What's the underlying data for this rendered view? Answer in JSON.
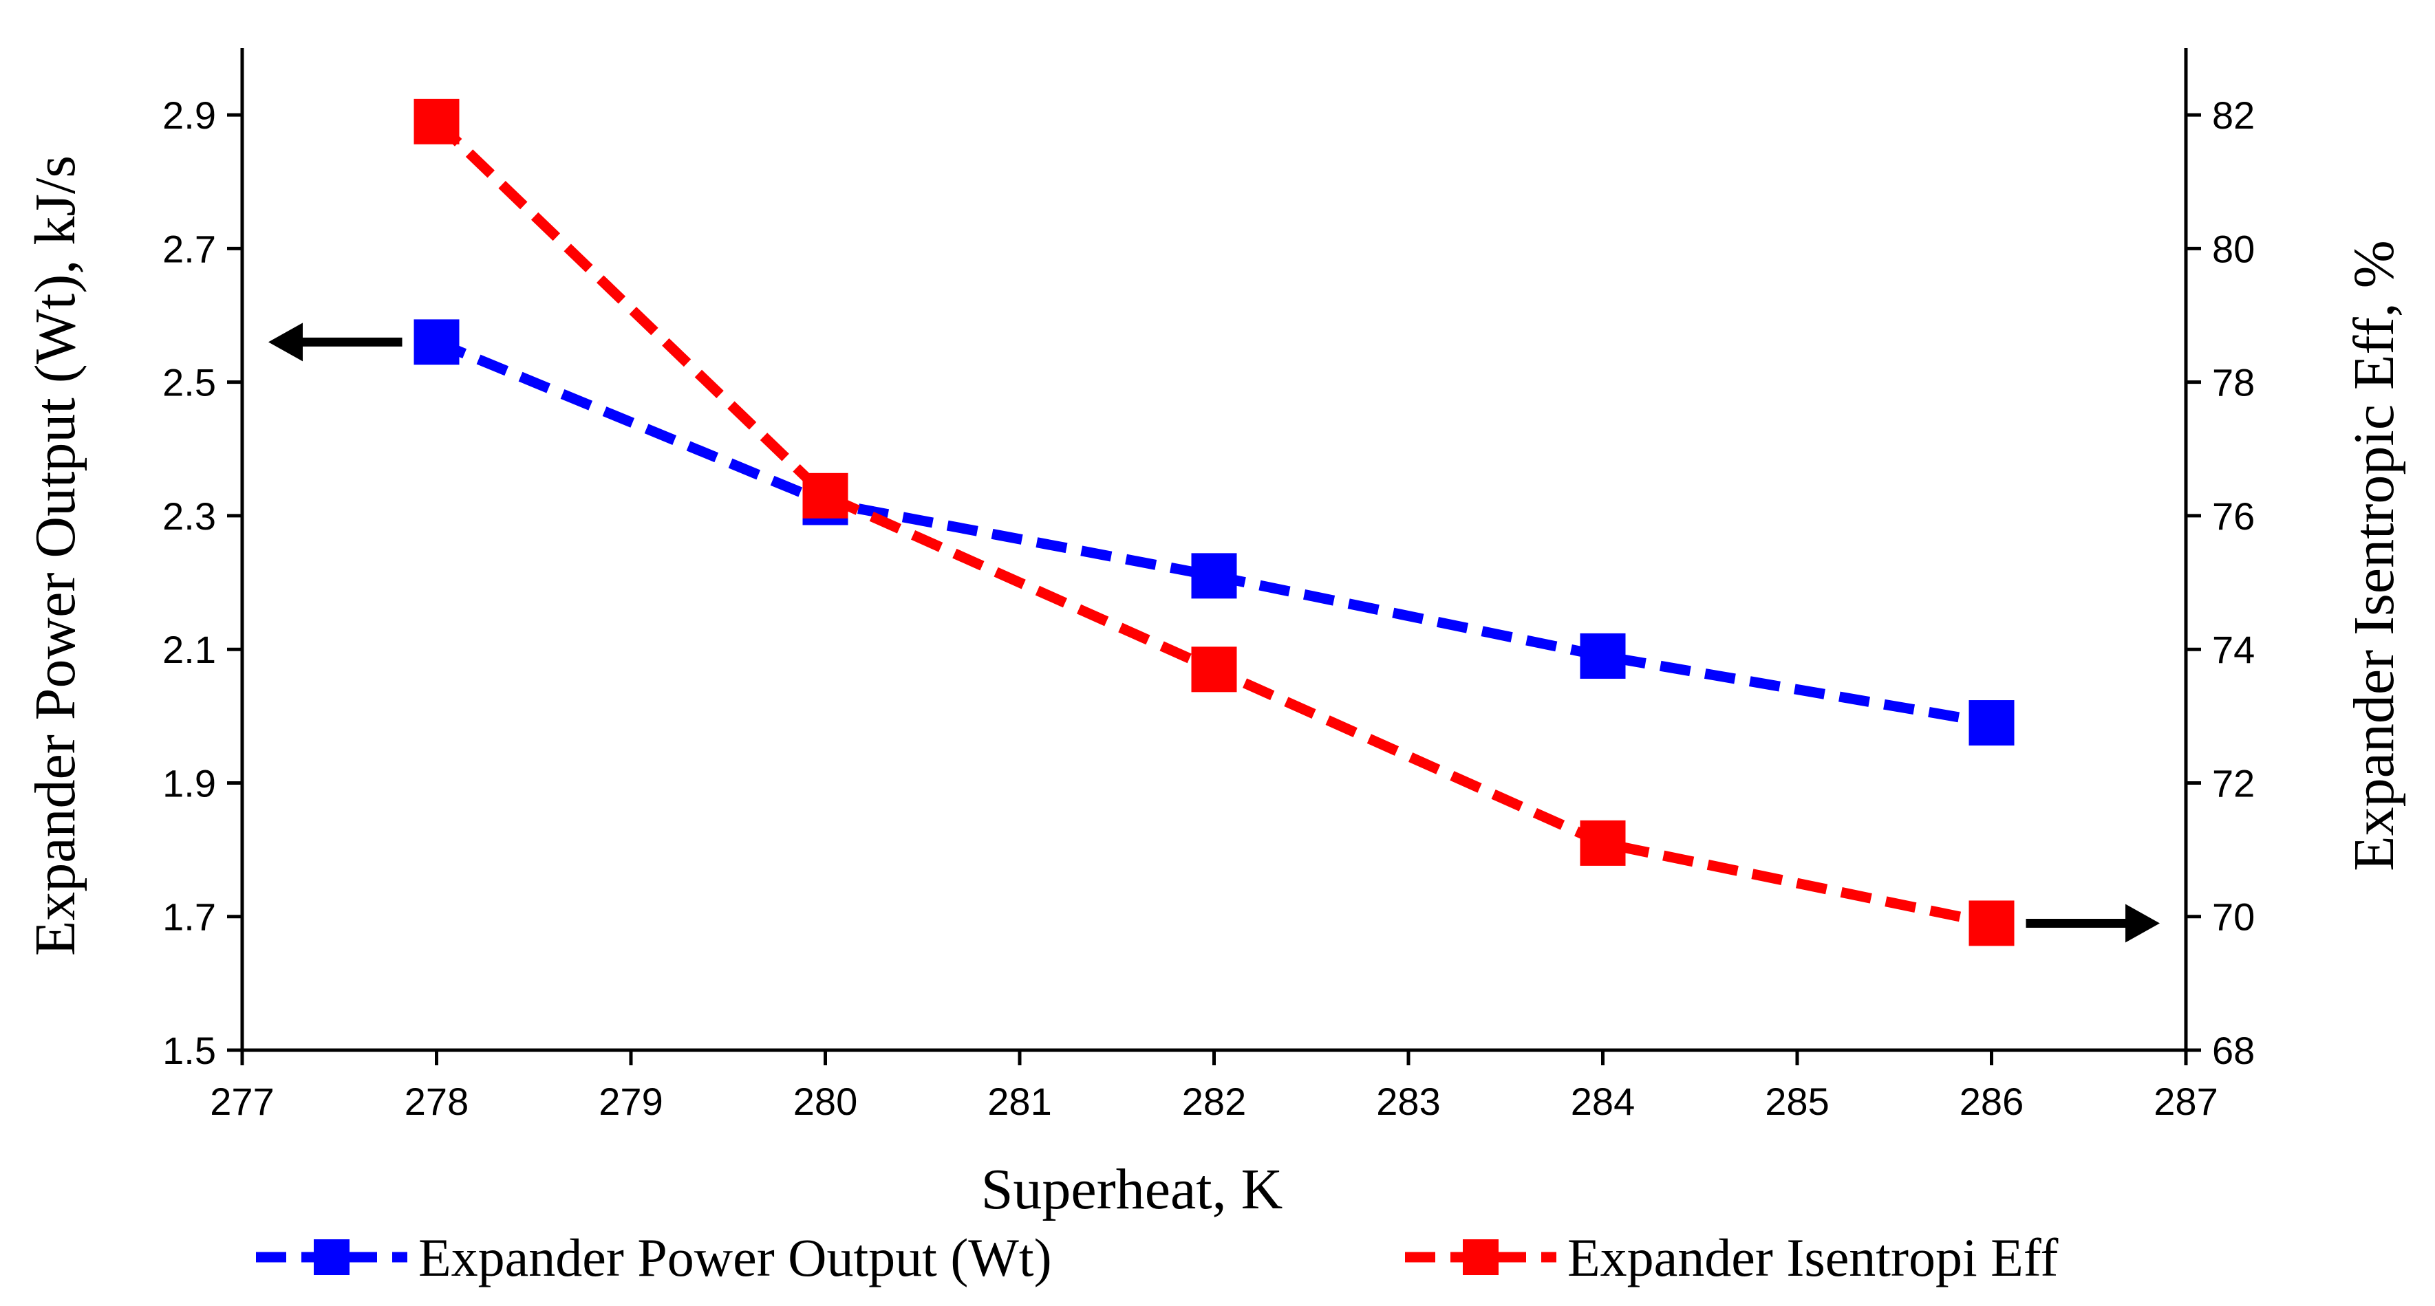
{
  "chart_data": {
    "type": "line",
    "title": "",
    "xlabel": "Superheat, K",
    "ylabel_left": "Expander Power Output (Wt), kJ/s",
    "ylabel_right": "Expander Isentropic Eff, %",
    "xlim": [
      277,
      287
    ],
    "ylim_left": [
      1.5,
      3.0
    ],
    "ylim_right": [
      68,
      83
    ],
    "x_ticks": [
      "277",
      "278",
      "279",
      "280",
      "281",
      "282",
      "283",
      "284",
      "285",
      "286",
      "287"
    ],
    "y_left_ticks": [
      "1.5",
      "1.7",
      "1.9",
      "2.1",
      "2.3",
      "2.5",
      "2.7",
      "2.9"
    ],
    "y_right_ticks": [
      "68",
      "70",
      "72",
      "74",
      "76",
      "78",
      "80",
      "82"
    ],
    "grid": false,
    "legend_position": "bottom",
    "series": [
      {
        "name": "Expander Power Output (Wt)",
        "axis": "left",
        "color": "#0000FF",
        "marker": "square",
        "line_style": "dashed",
        "x": [
          278,
          280,
          282,
          284,
          286
        ],
        "values": [
          2.56,
          2.32,
          2.21,
          2.09,
          1.99
        ]
      },
      {
        "name": "Expander Isentropi Eff",
        "axis": "right",
        "color": "#FF0000",
        "marker": "square",
        "line_style": "dashed",
        "x": [
          278,
          280,
          282,
          284,
          286
        ],
        "values": [
          81.9,
          76.3,
          73.7,
          71.1,
          69.9
        ]
      }
    ],
    "annotations": [
      {
        "type": "arrow",
        "direction": "left",
        "points_to_axis": "left",
        "near_series": "Expander Power Output (Wt)",
        "color": "#000000"
      },
      {
        "type": "arrow",
        "direction": "right",
        "points_to_axis": "right",
        "near_series": "Expander Isentropi Eff",
        "color": "#000000"
      }
    ]
  }
}
